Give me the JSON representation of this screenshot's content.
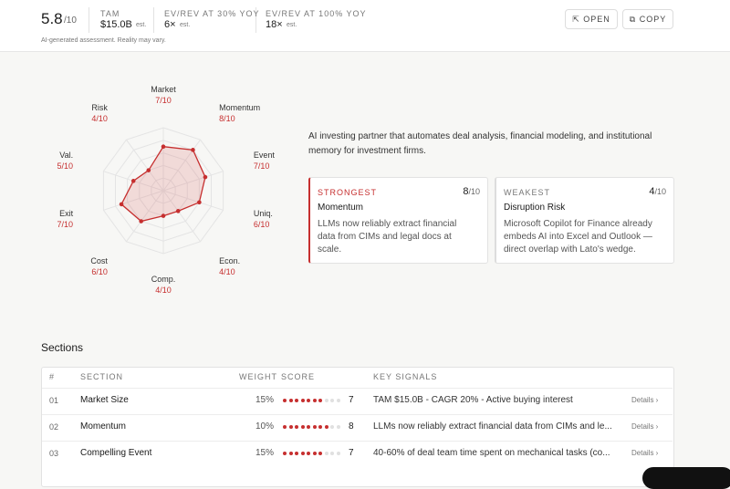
{
  "header": {
    "score": "5.8",
    "score_max": "/10",
    "metrics": [
      {
        "label": "TAM",
        "value": "$15.0B",
        "note": "est."
      },
      {
        "label": "EV/REV AT 30% YOY",
        "value": "6×",
        "note": "est."
      },
      {
        "label": "EV/REV AT 100% YOY",
        "value": "18×",
        "note": "est."
      }
    ],
    "disclaimer": "AI-generated assessment. Reality may vary.",
    "buttons": [
      "OPEN",
      "COPY"
    ]
  },
  "radar": {
    "axes": [
      {
        "label": "Market",
        "score": 7,
        "score_label": "7/10"
      },
      {
        "label": "Momentum",
        "score": 8,
        "score_label": "8/10"
      },
      {
        "label": "Event",
        "score": 7,
        "score_label": "7/10"
      },
      {
        "label": "Uniq.",
        "score": 6,
        "score_label": "6/10"
      },
      {
        "label": "Econ.",
        "score": 4,
        "score_label": "4/10"
      },
      {
        "label": "Comp.",
        "score": 4,
        "score_label": "4/10"
      },
      {
        "label": "Cost",
        "score": 6,
        "score_label": "6/10"
      },
      {
        "label": "Exit",
        "score": 7,
        "score_label": "7/10"
      },
      {
        "label": "Val.",
        "score": 5,
        "score_label": "5/10"
      },
      {
        "label": "Risk",
        "score": 4,
        "score_label": "4/10"
      }
    ],
    "max": 10
  },
  "description": "AI investing partner that automates deal analysis, financial modeling, and institutional memory for investment firms.",
  "cards": [
    {
      "tag": "STRONGEST",
      "score": "8",
      "score_max": "/10",
      "title": "Momentum",
      "body": "LLMs now reliably extract financial data from CIMs and legal docs at scale."
    },
    {
      "tag": "WEAKEST",
      "score": "4",
      "score_max": "/10",
      "title": "Disruption Risk",
      "body": "Microsoft Copilot for Finance already embeds AI into Excel and Outlook — direct overlap with Lato's wedge."
    }
  ],
  "sections": {
    "title": "Sections",
    "columns": [
      "#",
      "SECTION",
      "WEIGHT",
      "SCORE",
      "KEY SIGNALS"
    ],
    "dots": 10,
    "details": "Details",
    "rows": [
      {
        "num": "01",
        "name": "Market Size",
        "weight": "15%",
        "score": 7,
        "signals": "TAM $15.0B - CAGR 20% - Active buying interest"
      },
      {
        "num": "02",
        "name": "Momentum",
        "weight": "10%",
        "score": 8,
        "signals": "LLMs now reliably extract financial data from CIMs and le..."
      },
      {
        "num": "03",
        "name": "Compelling Event",
        "weight": "15%",
        "score": 7,
        "signals": "40-60% of deal team time spent on mechanical tasks (co..."
      }
    ]
  }
}
